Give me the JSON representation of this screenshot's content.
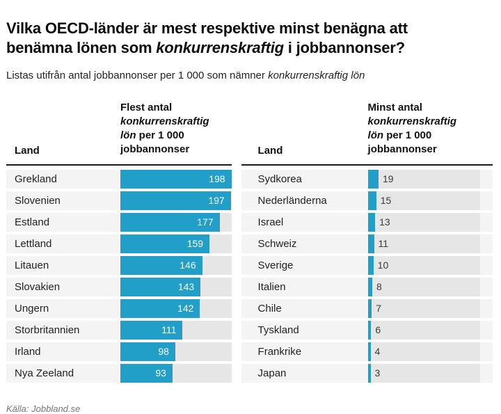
{
  "header": {
    "title": {
      "line1": "Vilka OECD-länder är mest respektive minst benägna att",
      "line2_pre": "benämna lönen som ",
      "line2_italic": "konkurrenskraftig",
      "line2_post": " i jobbannonser?"
    },
    "subtitle": {
      "pre": "Listas utifrån antal jobbannonser per 1 000 som nämner ",
      "italic": "konkurrenskraftig lön"
    }
  },
  "colors": {
    "accent": "#219fc8",
    "row_stripe": "#f4f4f4",
    "bar_track": "#e6e6e6",
    "header_rule": "#1b1b1b"
  },
  "tables": [
    {
      "land_header": "Land",
      "value_header": {
        "pre": "Flest antal ",
        "italic": "konkurrenskraftig lön",
        "post": " per 1 000 jobbannonser"
      }
    },
    {
      "land_header": "Land",
      "value_header": {
        "pre": "Minst antal ",
        "italic": "konkurrenskraftig lön",
        "post": " per 1 000 jobbannonser"
      }
    }
  ],
  "chart_data": [
    {
      "type": "bar",
      "orientation": "horizontal",
      "panel": "most",
      "title": "Flest antal konkurrenskraftig lön per 1 000 jobbannonser",
      "categories": [
        "Grekland",
        "Slovenien",
        "Estland",
        "Lettland",
        "Litauen",
        "Slovakien",
        "Ungern",
        "Storbritannien",
        "Irland",
        "Nya Zeeland"
      ],
      "values": [
        198,
        197,
        177,
        159,
        146,
        143,
        142,
        111,
        98,
        93
      ],
      "xlim": [
        0,
        198
      ],
      "value_labels": "inside-end-white",
      "grid": false,
      "legend": false
    },
    {
      "type": "bar",
      "orientation": "horizontal",
      "panel": "least",
      "title": "Minst antal konkurrenskraftig lön per 1 000 jobbannonser",
      "categories": [
        "Sydkorea",
        "Nederländerna",
        "Israel",
        "Schweiz",
        "Sverige",
        "Italien",
        "Chile",
        "Tyskland",
        "Frankrike",
        "Japan"
      ],
      "values": [
        19,
        15,
        13,
        11,
        10,
        8,
        7,
        6,
        4,
        3
      ],
      "xlim": [
        0,
        198
      ],
      "value_labels": "outside-end-dark",
      "grid": false,
      "legend": false
    }
  ],
  "footer": {
    "source": "Källa: Jobbland.se"
  }
}
